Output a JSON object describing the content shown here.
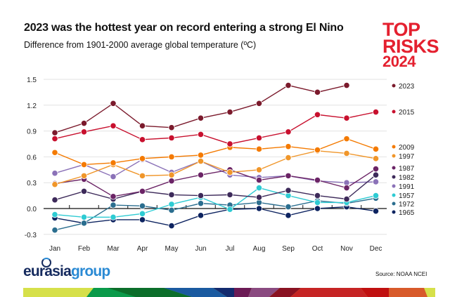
{
  "header": {
    "title": "2023 was the hottest year on record entering a strong El Nino",
    "subtitle": "Difference from 1901-2000 average global temperature (ºC)"
  },
  "badge": {
    "line1": "TOP",
    "line2": "RISKS",
    "line3": "2024"
  },
  "footer": {
    "logo_part1": "eurasia",
    "logo_part2": "group",
    "source": "Source: NOAA NCEI"
  },
  "chart_data": {
    "type": "line",
    "title": "2023 was the hottest year on record entering a strong El Nino",
    "ylabel": "Difference from 1901-2000 average global temperature (ºC)",
    "categories": [
      "Jan",
      "Feb",
      "Mar",
      "Apr",
      "May",
      "Jun",
      "Jul",
      "Aug",
      "Sep",
      "Oct",
      "Nov",
      "Dec"
    ],
    "yticks": [
      "1.5",
      "1.2",
      "0.9",
      "0.6",
      "0.3",
      "0.0",
      "-0.3"
    ],
    "ylim": [
      -0.3,
      1.5
    ],
    "grid": true,
    "legend": "right, labels at line ends",
    "series": [
      {
        "name": "2023",
        "color": "#7b1a2c",
        "values": [
          0.88,
          0.99,
          1.22,
          0.96,
          0.94,
          1.05,
          1.12,
          1.22,
          1.43,
          1.35,
          1.43,
          null
        ]
      },
      {
        "name": "2015",
        "color": "#c8102e",
        "values": [
          0.81,
          0.89,
          0.96,
          0.8,
          0.82,
          0.86,
          0.75,
          0.82,
          0.89,
          1.09,
          1.05,
          1.12
        ]
      },
      {
        "name": "2009",
        "color": "#f47a00",
        "values": [
          0.65,
          0.51,
          0.53,
          0.58,
          0.6,
          0.62,
          0.71,
          0.69,
          0.72,
          0.68,
          0.81,
          0.69
        ]
      },
      {
        "name": "1997",
        "color": "#f0962a",
        "values": [
          0.28,
          0.38,
          0.51,
          0.38,
          0.39,
          0.55,
          0.42,
          0.45,
          0.59,
          0.67,
          0.64,
          0.58
        ]
      },
      {
        "name": "1987",
        "color": "#6b2466",
        "values": [
          0.29,
          0.34,
          0.14,
          0.2,
          0.32,
          0.39,
          0.45,
          0.33,
          0.38,
          0.33,
          0.24,
          0.46
        ]
      },
      {
        "name": "1982",
        "color": "#3d2a5a",
        "values": [
          0.1,
          0.2,
          0.11,
          0.2,
          0.16,
          0.15,
          0.16,
          0.13,
          0.21,
          0.15,
          0.11,
          0.39
        ]
      },
      {
        "name": "1991",
        "color": "#8b72b8",
        "values": [
          0.41,
          0.51,
          0.37,
          0.57,
          0.42,
          0.55,
          0.39,
          0.36,
          0.38,
          0.32,
          0.3,
          0.31
        ]
      },
      {
        "name": "1957",
        "color": "#2ecbd3",
        "values": [
          -0.07,
          -0.1,
          -0.1,
          -0.06,
          0.05,
          0.13,
          -0.01,
          0.24,
          0.15,
          0.07,
          0.07,
          0.15
        ]
      },
      {
        "name": "1972",
        "color": "#2b6e8f",
        "values": [
          -0.25,
          -0.17,
          0.04,
          0.03,
          -0.02,
          0.06,
          0.04,
          0.07,
          0.02,
          0.09,
          0.06,
          0.12
        ]
      },
      {
        "name": "1965",
        "color": "#0d2360",
        "values": [
          -0.11,
          -0.17,
          -0.13,
          -0.13,
          -0.2,
          -0.08,
          -0.01,
          0.0,
          -0.08,
          0.0,
          0.02,
          -0.03
        ]
      }
    ]
  }
}
